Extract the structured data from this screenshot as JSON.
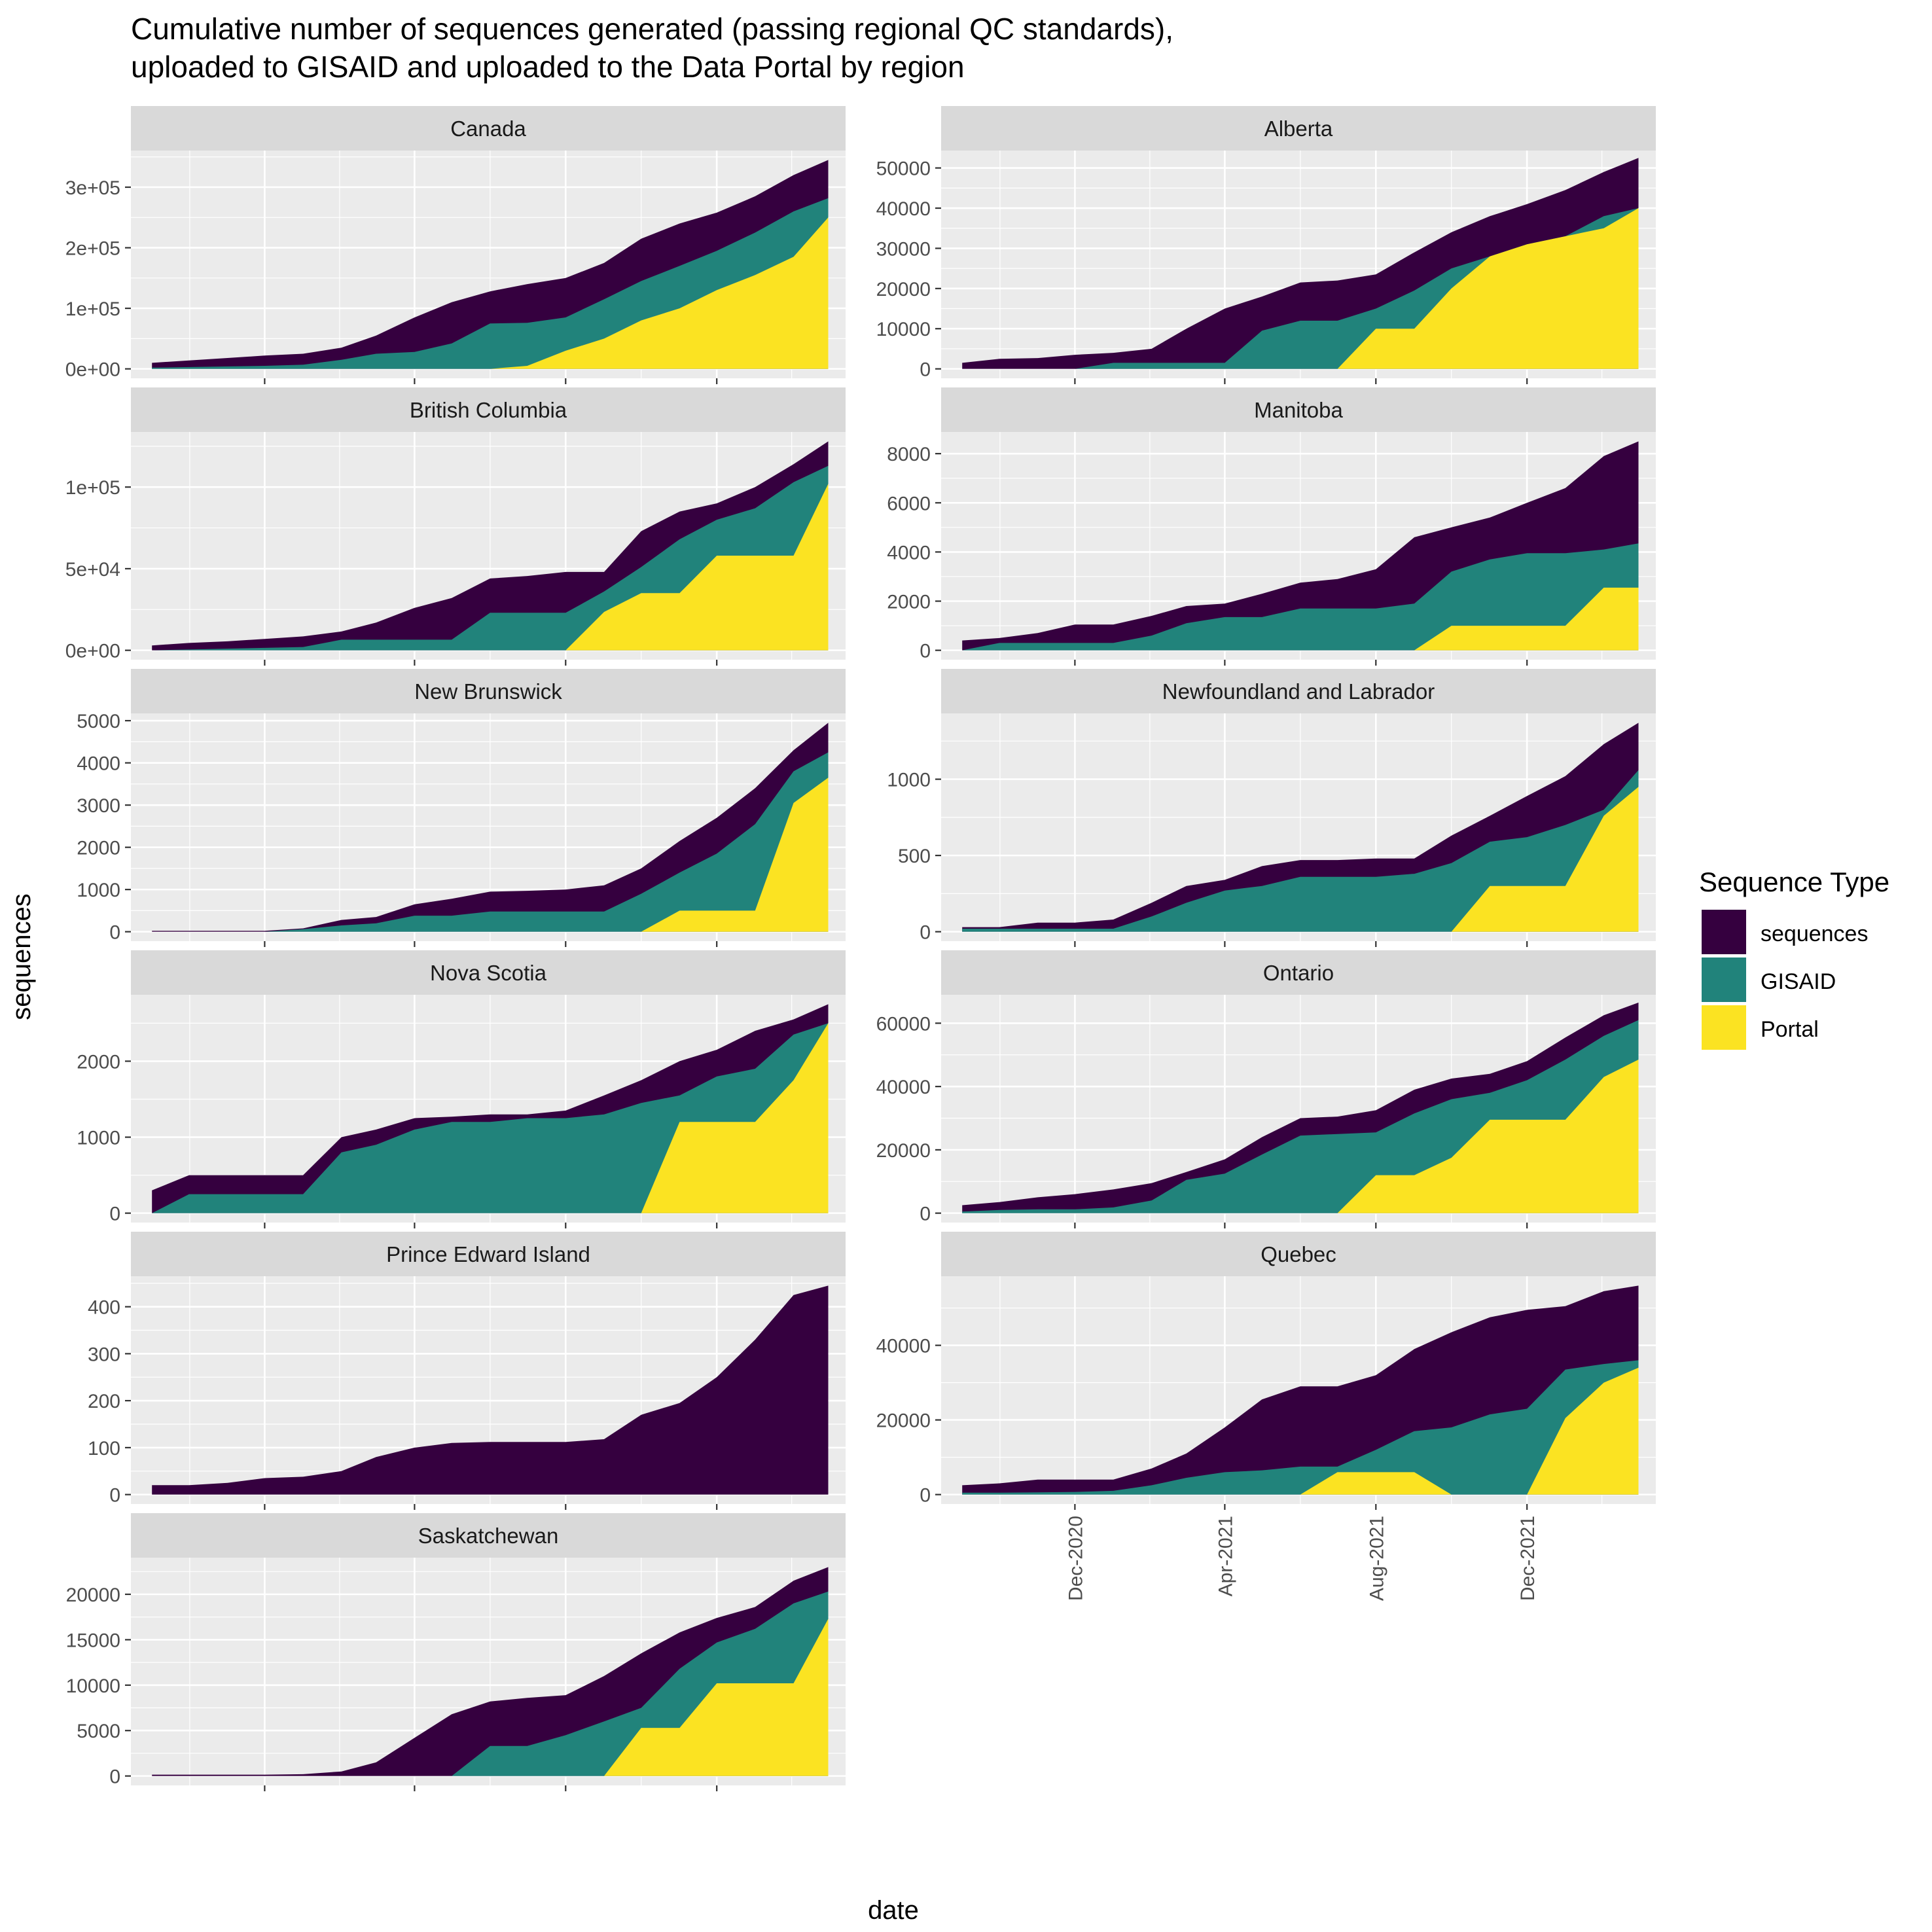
{
  "title_lines": [
    "Cumulative number of sequences generated (passing regional QC standards),",
    "uploaded to GISAID and uploaded to the Data Portal by region"
  ],
  "legend_title": "Sequence Type",
  "colors": {
    "sequences": "#35003f",
    "GISAID": "#21837b",
    "Portal": "#fbe322",
    "panel_bg": "#ebebeb",
    "strip_bg": "#d9d9d9"
  },
  "chart_data": {
    "type": "area",
    "title": "Cumulative number of sequences generated (passing regional QC standards), uploaded to GISAID and uploaded to the Data Portal by region",
    "xlabel": "date",
    "ylabel": "sequences",
    "x_tick_labels": [
      "Dec-2020",
      "Apr-2021",
      "Aug-2021",
      "Dec-2021"
    ],
    "x_tick_values": [
      "2020-12-01",
      "2021-04-01",
      "2021-08-01",
      "2021-12-01"
    ],
    "x_range": [
      "2020-08-15",
      "2022-03-15"
    ],
    "dates": [
      "2020-09-01",
      "2020-10-01",
      "2020-11-01",
      "2020-12-01",
      "2021-01-01",
      "2021-02-01",
      "2021-03-01",
      "2021-04-01",
      "2021-05-01",
      "2021-06-01",
      "2021-07-01",
      "2021-08-01",
      "2021-09-01",
      "2021-10-01",
      "2021-11-01",
      "2021-12-01",
      "2022-01-01",
      "2022-02-01",
      "2022-03-01"
    ],
    "legend": {
      "title": "Sequence Type",
      "entries": [
        "sequences",
        "GISAID",
        "Portal"
      ],
      "position": "right"
    },
    "grid": true,
    "panels": [
      {
        "region": "Canada",
        "ylim": [
          0,
          345000
        ],
        "yticks": [
          0,
          100000,
          200000,
          300000
        ],
        "ytick_labels": [
          "0e+00",
          "1e+05",
          "2e+05",
          "3e+05"
        ],
        "series": {
          "sequences": [
            10000,
            14000,
            18000,
            22000,
            25000,
            35000,
            55000,
            85000,
            110000,
            128000,
            140000,
            150000,
            175000,
            215000,
            240000,
            258000,
            285000,
            320000,
            345000
          ],
          "GISAID": [
            2000,
            3000,
            4000,
            5000,
            7000,
            15000,
            25000,
            28000,
            42000,
            75000,
            76000,
            85000,
            115000,
            145000,
            170000,
            195000,
            225000,
            260000,
            282000
          ],
          "Portal": [
            0,
            0,
            0,
            0,
            0,
            0,
            0,
            0,
            0,
            0,
            5000,
            30000,
            50000,
            80000,
            100000,
            130000,
            155000,
            185000,
            250000
          ]
        }
      },
      {
        "region": "Alberta",
        "ylim": [
          0,
          52000
        ],
        "yticks": [
          0,
          10000,
          20000,
          30000,
          40000,
          50000
        ],
        "ytick_labels": [
          "0",
          "10000",
          "20000",
          "30000",
          "40000",
          "50000"
        ],
        "series": {
          "sequences": [
            1500,
            2500,
            2700,
            3500,
            4000,
            5000,
            10000,
            15000,
            18000,
            21500,
            22000,
            23500,
            29000,
            34000,
            38000,
            41000,
            44500,
            49000,
            52500
          ],
          "GISAID": [
            0,
            0,
            0,
            0,
            1500,
            1500,
            1500,
            1500,
            9500,
            12000,
            12000,
            15000,
            19500,
            25000,
            28000,
            31000,
            33000,
            38000,
            40000
          ],
          "Portal": [
            0,
            0,
            0,
            0,
            0,
            0,
            0,
            0,
            0,
            0,
            0,
            10000,
            10000,
            20000,
            28000,
            31000,
            33000,
            35000,
            40000
          ]
        }
      },
      {
        "region": "British Columbia",
        "ylim": [
          0,
          128000
        ],
        "yticks": [
          0,
          50000,
          100000
        ],
        "ytick_labels": [
          "0e+00",
          "5e+04",
          "1e+05"
        ],
        "series": {
          "sequences": [
            3000,
            4500,
            5500,
            7000,
            8500,
            11500,
            17000,
            26000,
            32000,
            44000,
            45500,
            48000,
            48000,
            73000,
            85000,
            90000,
            100000,
            114000,
            128000
          ],
          "GISAID": [
            0,
            500,
            1000,
            1500,
            2000,
            6500,
            6500,
            6500,
            6500,
            23000,
            23000,
            23000,
            36000,
            51000,
            68000,
            80000,
            87000,
            103000,
            113000
          ],
          "Portal": [
            0,
            0,
            0,
            0,
            0,
            0,
            0,
            0,
            0,
            0,
            0,
            0,
            23500,
            35000,
            35000,
            58000,
            58000,
            58000,
            102000
          ]
        }
      },
      {
        "region": "Manitoba",
        "ylim": [
          0,
          8500
        ],
        "yticks": [
          0,
          2000,
          4000,
          6000,
          8000
        ],
        "ytick_labels": [
          "0",
          "2000",
          "4000",
          "6000",
          "8000"
        ],
        "series": {
          "sequences": [
            400,
            500,
            700,
            1050,
            1050,
            1400,
            1800,
            1900,
            2300,
            2750,
            2900,
            3300,
            4600,
            5000,
            5400,
            6000,
            6600,
            7900,
            8500
          ],
          "GISAID": [
            0,
            300,
            300,
            300,
            300,
            600,
            1100,
            1350,
            1350,
            1700,
            1700,
            1700,
            1900,
            3200,
            3700,
            3950,
            3950,
            4100,
            4350
          ],
          "Portal": [
            0,
            0,
            0,
            0,
            0,
            0,
            0,
            0,
            0,
            0,
            0,
            0,
            0,
            1000,
            1000,
            1000,
            1000,
            2550,
            2550
          ]
        }
      },
      {
        "region": "New Brunswick",
        "ylim": [
          0,
          4950
        ],
        "yticks": [
          0,
          1000,
          2000,
          3000,
          4000,
          5000
        ],
        "ytick_labels": [
          "0",
          "1000",
          "2000",
          "3000",
          "4000",
          "5000"
        ],
        "series": {
          "sequences": [
            20,
            20,
            20,
            20,
            80,
            280,
            350,
            650,
            780,
            950,
            970,
            1000,
            1100,
            1500,
            2150,
            2700,
            3400,
            4300,
            4950
          ],
          "GISAID": [
            0,
            0,
            0,
            0,
            60,
            150,
            200,
            380,
            380,
            480,
            480,
            480,
            480,
            900,
            1400,
            1850,
            2550,
            3800,
            4250
          ],
          "Portal": [
            0,
            0,
            0,
            0,
            0,
            0,
            0,
            0,
            0,
            0,
            0,
            0,
            0,
            0,
            500,
            500,
            500,
            3050,
            3650
          ]
        }
      },
      {
        "region": "Newfoundland and Labrador",
        "ylim": [
          0,
          1370
        ],
        "yticks": [
          0,
          500,
          1000
        ],
        "ytick_labels": [
          "0",
          "500",
          "1000"
        ],
        "series": {
          "sequences": [
            30,
            30,
            60,
            60,
            80,
            190,
            300,
            340,
            430,
            470,
            470,
            480,
            480,
            630,
            760,
            890,
            1020,
            1230,
            1370
          ],
          "GISAID": [
            20,
            20,
            20,
            20,
            20,
            100,
            190,
            270,
            300,
            360,
            360,
            360,
            380,
            450,
            590,
            620,
            700,
            800,
            1060
          ],
          "Portal": [
            0,
            0,
            0,
            0,
            0,
            0,
            0,
            0,
            0,
            0,
            0,
            0,
            0,
            0,
            300,
            300,
            300,
            760,
            950
          ]
        }
      },
      {
        "region": "Nova Scotia",
        "ylim": [
          0,
          2750
        ],
        "yticks": [
          0,
          1000,
          2000
        ],
        "ytick_labels": [
          "0",
          "1000",
          "2000"
        ],
        "series": {
          "sequences": [
            300,
            500,
            500,
            500,
            500,
            1000,
            1100,
            1250,
            1270,
            1300,
            1300,
            1350,
            1550,
            1750,
            2000,
            2150,
            2400,
            2550,
            2750
          ],
          "GISAID": [
            0,
            250,
            250,
            250,
            250,
            800,
            900,
            1100,
            1200,
            1200,
            1250,
            1250,
            1300,
            1450,
            1550,
            1800,
            1900,
            2350,
            2500
          ],
          "Portal": [
            0,
            0,
            0,
            0,
            0,
            0,
            0,
            0,
            0,
            0,
            0,
            0,
            0,
            0,
            1200,
            1200,
            1200,
            1750,
            2500
          ]
        }
      },
      {
        "region": "Ontario",
        "ylim": [
          0,
          66000
        ],
        "yticks": [
          0,
          20000,
          40000,
          60000
        ],
        "ytick_labels": [
          "0",
          "20000",
          "40000",
          "60000"
        ],
        "series": {
          "sequences": [
            2500,
            3500,
            5000,
            6000,
            7500,
            9500,
            13000,
            17000,
            24000,
            30000,
            30500,
            32500,
            39000,
            42500,
            44000,
            48000,
            55500,
            62500,
            66500
          ],
          "GISAID": [
            500,
            1000,
            1200,
            1200,
            1800,
            4000,
            10500,
            12500,
            18500,
            24500,
            25000,
            25500,
            31500,
            36000,
            38000,
            42000,
            48500,
            56000,
            61000
          ],
          "Portal": [
            0,
            0,
            0,
            0,
            0,
            0,
            0,
            0,
            0,
            0,
            0,
            12000,
            12000,
            17500,
            29500,
            29500,
            29500,
            43000,
            48500
          ]
        }
      },
      {
        "region": "Prince Edward Island",
        "ylim": [
          0,
          445
        ],
        "yticks": [
          0,
          100,
          200,
          300,
          400
        ],
        "ytick_labels": [
          "0",
          "100",
          "200",
          "300",
          "400"
        ],
        "series": {
          "sequences": [
            20,
            20,
            25,
            35,
            38,
            50,
            80,
            100,
            110,
            112,
            112,
            112,
            118,
            170,
            195,
            250,
            330,
            425,
            445
          ],
          "GISAID": [
            0,
            0,
            0,
            0,
            0,
            0,
            0,
            0,
            0,
            0,
            0,
            0,
            0,
            0,
            0,
            0,
            0,
            0,
            0
          ],
          "Portal": [
            0,
            0,
            0,
            0,
            0,
            0,
            0,
            0,
            0,
            0,
            0,
            0,
            0,
            0,
            0,
            0,
            0,
            0,
            0
          ]
        }
      },
      {
        "region": "Quebec",
        "ylim": [
          0,
          56000
        ],
        "yticks": [
          0,
          20000,
          40000
        ],
        "ytick_labels": [
          "0",
          "20000",
          "40000"
        ],
        "series": {
          "sequences": [
            2500,
            3000,
            4000,
            4000,
            4000,
            7000,
            11000,
            18000,
            25500,
            29000,
            29000,
            32000,
            39000,
            43500,
            47500,
            49500,
            50500,
            54500,
            56000
          ],
          "GISAID": [
            500,
            500,
            600,
            700,
            1000,
            2500,
            4500,
            6000,
            6500,
            7500,
            7500,
            12000,
            17000,
            18000,
            21500,
            23000,
            33500,
            35000,
            36000
          ],
          "Portal": [
            0,
            0,
            0,
            0,
            0,
            0,
            0,
            0,
            0,
            0,
            6000,
            6000,
            6000,
            0,
            0,
            0,
            20500,
            30000,
            34000
          ]
        }
      },
      {
        "region": "Saskatchewan",
        "ylim": [
          0,
          23000
        ],
        "yticks": [
          0,
          5000,
          10000,
          15000,
          20000
        ],
        "ytick_labels": [
          "0",
          "5000",
          "10000",
          "15000",
          "20000"
        ],
        "series": {
          "sequences": [
            150,
            150,
            150,
            150,
            200,
            500,
            1500,
            4200,
            6800,
            8200,
            8600,
            8900,
            11000,
            13500,
            15800,
            17400,
            18600,
            21500,
            23000
          ],
          "GISAID": [
            0,
            0,
            0,
            0,
            0,
            0,
            0,
            0,
            0,
            3300,
            3300,
            4500,
            6000,
            7500,
            11800,
            14700,
            16200,
            19000,
            20300
          ],
          "Portal": [
            0,
            0,
            0,
            0,
            0,
            0,
            0,
            0,
            0,
            0,
            0,
            0,
            0,
            5300,
            5300,
            10200,
            10200,
            10200,
            17300
          ]
        }
      }
    ]
  }
}
